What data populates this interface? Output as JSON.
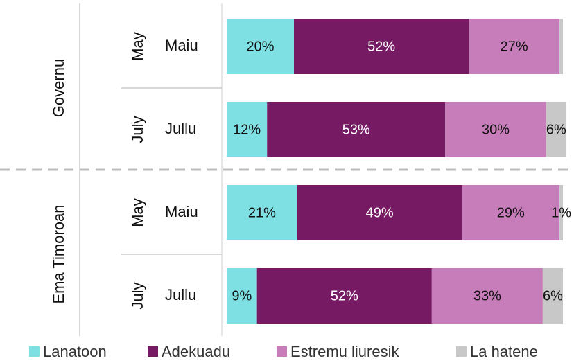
{
  "chart_data": {
    "type": "stacked_bar_horizontal",
    "groups": [
      {
        "name": "Governu",
        "periods": [
          "May",
          "July"
        ],
        "categories": [
          "Maiu",
          "Jullu"
        ]
      },
      {
        "name": "Ema Timoroan",
        "periods": [
          "May",
          "July"
        ],
        "categories": [
          "Maiu",
          "Jullu"
        ]
      }
    ],
    "series": [
      {
        "name": "Lanatoon",
        "color": "#7fe0e4",
        "values": [
          20,
          12,
          21,
          9
        ],
        "value_labels": [
          "20%",
          "12%",
          "21%",
          "9%"
        ]
      },
      {
        "name": "Adekuadu",
        "color": "#761a63",
        "values": [
          52,
          53,
          49,
          52
        ],
        "value_labels": [
          "52%",
          "53%",
          "49%",
          "52%"
        ]
      },
      {
        "name": "Estremu liuresik",
        "color": "#c77dba",
        "values": [
          27,
          30,
          29,
          33
        ],
        "value_labels": [
          "27%",
          "30%",
          "29%",
          "33%"
        ]
      },
      {
        "name": "La hatene",
        "color": "#c8c8c8",
        "values": [
          1,
          6,
          1,
          6
        ],
        "value_labels": [
          null,
          "6%",
          "1%",
          "6%"
        ]
      }
    ],
    "legend": "bottom"
  }
}
